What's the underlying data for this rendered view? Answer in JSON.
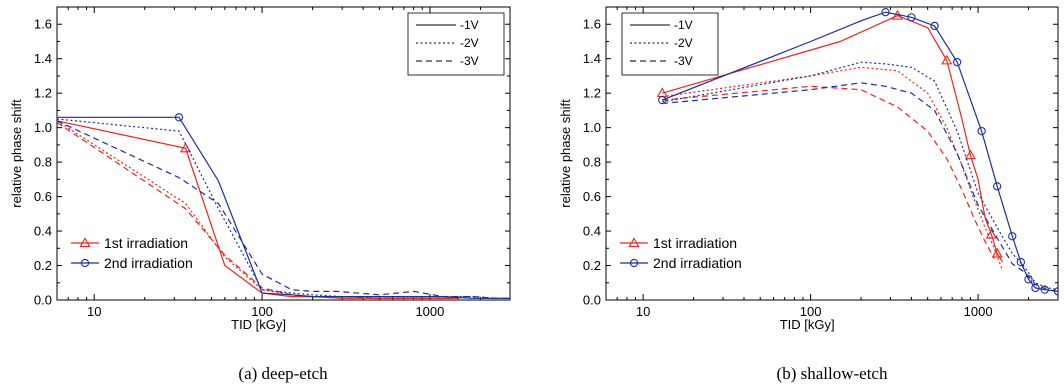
{
  "colors": {
    "first": "#e8261e",
    "second": "#1a2fa0"
  },
  "chart_data": [
    {
      "type": "line",
      "caption": "(a) deep-etch",
      "xlabel": "TID [kGy]",
      "ylabel": "relative phase shift",
      "xscale": "log",
      "xlim": [
        6,
        3000
      ],
      "ylim": [
        0,
        1.7
      ],
      "xticks": [
        10,
        100,
        1000
      ],
      "yticks": [
        0.0,
        0.2,
        0.4,
        0.6,
        0.8,
        1.0,
        1.2,
        1.4,
        1.6
      ],
      "legend_voltage": {
        "position": "top-right",
        "entries": [
          "-1V",
          "-2V",
          "-3V"
        ]
      },
      "legend_irradiation": {
        "position": "bottom-left",
        "entries": [
          "1st irradiation",
          "2nd irradiation"
        ]
      },
      "series": [
        {
          "name": "-1V",
          "irradiation": "1st irradiation",
          "marker": "triangle",
          "markers_at": [
            35
          ],
          "x": [
            6,
            35,
            60,
            100,
            150,
            200,
            300,
            500,
            800,
            1100,
            1500
          ],
          "y": [
            1.04,
            0.88,
            0.2,
            0.04,
            0.02,
            0.02,
            0.01,
            0.01,
            0.01,
            0.01,
            0.01
          ]
        },
        {
          "name": "-2V",
          "irradiation": "1st irradiation",
          "x": [
            6,
            35,
            60,
            100,
            150,
            200,
            300,
            500,
            800,
            1100,
            1500
          ],
          "y": [
            1.04,
            0.56,
            0.25,
            0.06,
            0.03,
            0.02,
            0.02,
            0.01,
            0.01,
            0.01,
            0.01
          ]
        },
        {
          "name": "-3V",
          "irradiation": "1st irradiation",
          "x": [
            6,
            35,
            60,
            100,
            150,
            200,
            300,
            500,
            800,
            1100,
            1500
          ],
          "y": [
            1.03,
            0.53,
            0.26,
            0.07,
            0.03,
            0.02,
            0.02,
            0.01,
            0.01,
            0.01,
            0.01
          ]
        },
        {
          "name": "-1V",
          "irradiation": "2nd irradiation",
          "marker": "circle",
          "markers_at": [
            32
          ],
          "x": [
            6,
            32,
            55,
            100,
            150,
            200,
            300,
            500,
            800,
            1200,
            1800,
            2500,
            3000
          ],
          "y": [
            1.06,
            1.06,
            0.69,
            0.04,
            0.03,
            0.02,
            0.02,
            0.02,
            0.02,
            0.02,
            0.01,
            0.01,
            0.01
          ]
        },
        {
          "name": "-2V",
          "irradiation": "2nd irradiation",
          "x": [
            6,
            32,
            55,
            100,
            150,
            200,
            300,
            500,
            800,
            1200,
            1800,
            2500,
            3000
          ],
          "y": [
            1.05,
            0.98,
            0.53,
            0.06,
            0.04,
            0.03,
            0.02,
            0.02,
            0.02,
            0.02,
            0.02,
            0.01,
            0.01
          ]
        },
        {
          "name": "-3V",
          "irradiation": "2nd irradiation",
          "x": [
            6,
            32,
            55,
            100,
            150,
            200,
            280,
            500,
            800,
            1200,
            1800,
            2500,
            3000
          ],
          "y": [
            1.04,
            0.71,
            0.56,
            0.15,
            0.06,
            0.05,
            0.05,
            0.03,
            0.05,
            0.02,
            0.02,
            0.01,
            0.01
          ]
        }
      ]
    },
    {
      "type": "line",
      "caption": "(b) shallow-etch",
      "xlabel": "TID [kGy]",
      "ylabel": "relative phase shift",
      "xscale": "log",
      "xlim": [
        6,
        3000
      ],
      "ylim": [
        0,
        1.7
      ],
      "xticks": [
        10,
        100,
        1000
      ],
      "yticks": [
        0.0,
        0.2,
        0.4,
        0.6,
        0.8,
        1.0,
        1.2,
        1.4,
        1.6
      ],
      "legend_voltage": {
        "position": "top-left",
        "entries": [
          "-1V",
          "-2V",
          "-3V"
        ]
      },
      "legend_irradiation": {
        "position": "bottom-left",
        "entries": [
          "1st irradiation",
          "2nd irradiation"
        ]
      },
      "series": [
        {
          "name": "-1V",
          "irradiation": "1st irradiation",
          "marker": "triangle",
          "markers_at": [
            13,
            330,
            650,
            900,
            1050,
            1200,
            1300
          ],
          "x": [
            13,
            150,
            330,
            500,
            650,
            800,
            900,
            1000,
            1100,
            1200,
            1300,
            1400
          ],
          "y": [
            1.2,
            1.5,
            1.65,
            1.58,
            1.39,
            1.05,
            0.84,
            0.7,
            0.48,
            0.38,
            0.27,
            0.22
          ]
        },
        {
          "name": "-2V",
          "irradiation": "1st irradiation",
          "x": [
            13,
            100,
            200,
            330,
            500,
            650,
            800,
            950,
            1100,
            1250,
            1400
          ],
          "y": [
            1.18,
            1.3,
            1.35,
            1.33,
            1.2,
            1.0,
            0.78,
            0.58,
            0.42,
            0.3,
            0.17
          ]
        },
        {
          "name": "-3V",
          "irradiation": "1st irradiation",
          "x": [
            13,
            100,
            200,
            330,
            500,
            650,
            800,
            950,
            1100,
            1250
          ],
          "y": [
            1.16,
            1.24,
            1.22,
            1.12,
            0.98,
            0.82,
            0.64,
            0.47,
            0.34,
            0.24
          ]
        },
        {
          "name": "-1V",
          "irradiation": "2nd irradiation",
          "marker": "circle",
          "markers_at": [
            13,
            280,
            400,
            550,
            750,
            1050,
            1300,
            1600,
            1800,
            2000,
            2200,
            2500,
            3000
          ],
          "x": [
            13,
            100,
            200,
            280,
            400,
            550,
            750,
            1050,
            1300,
            1600,
            1800,
            2000,
            2200,
            2500,
            3000
          ],
          "y": [
            1.16,
            1.5,
            1.62,
            1.67,
            1.64,
            1.59,
            1.38,
            0.98,
            0.66,
            0.37,
            0.22,
            0.12,
            0.07,
            0.06,
            0.05
          ]
        },
        {
          "name": "-2V",
          "irradiation": "2nd irradiation",
          "x": [
            13,
            100,
            200,
            280,
            400,
            550,
            750,
            1000,
            1300,
            1600,
            1900,
            2200,
            2600,
            3000
          ],
          "y": [
            1.15,
            1.3,
            1.38,
            1.37,
            1.35,
            1.27,
            0.98,
            0.62,
            0.42,
            0.27,
            0.19,
            0.1,
            0.07,
            0.06
          ]
        },
        {
          "name": "-3V",
          "irradiation": "2nd irradiation",
          "x": [
            13,
            100,
            200,
            280,
            400,
            550,
            750,
            1000,
            1300,
            1600,
            1900,
            2200,
            2600,
            3000
          ],
          "y": [
            1.14,
            1.22,
            1.26,
            1.24,
            1.2,
            1.1,
            0.85,
            0.55,
            0.36,
            0.21,
            0.16,
            0.09,
            0.06,
            0.05
          ]
        }
      ]
    }
  ]
}
